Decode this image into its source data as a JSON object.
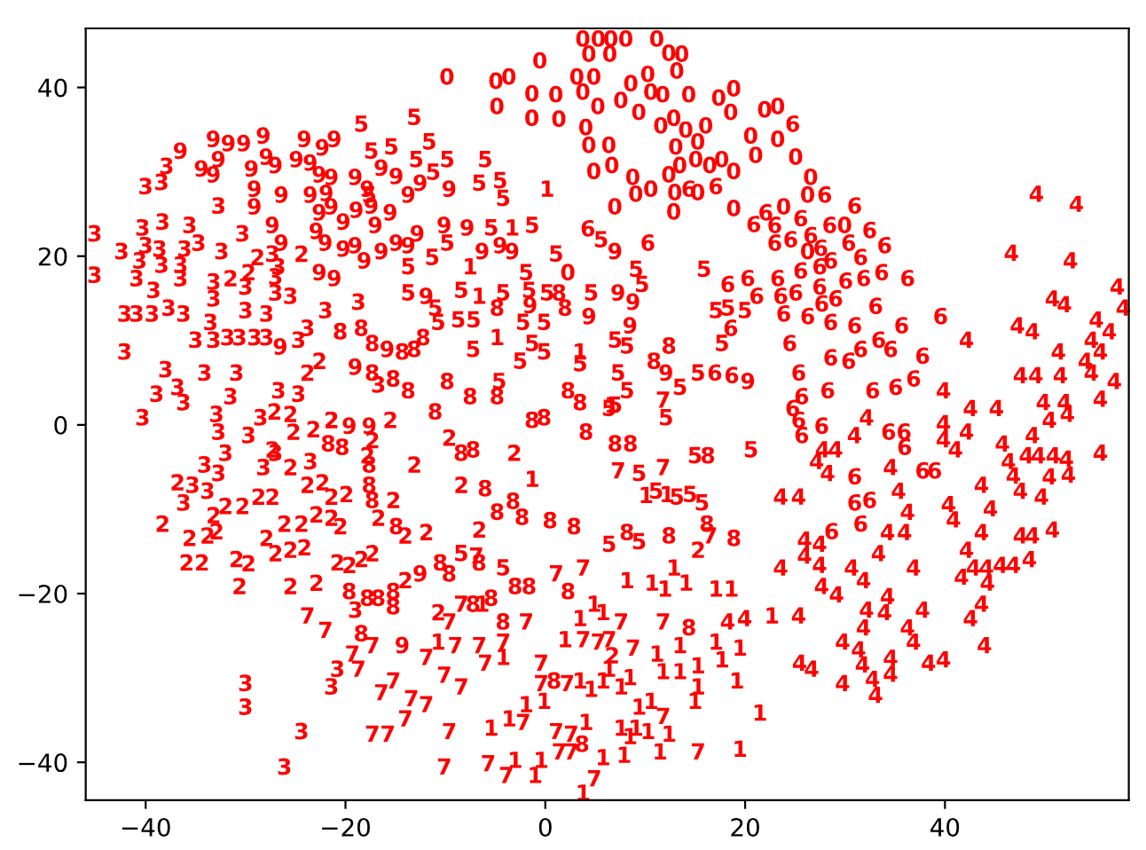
{
  "chart_data": {
    "type": "scatter",
    "xlim": [
      -46,
      58.4
    ],
    "ylim": [
      -44.5,
      47
    ],
    "xticks": [
      -40,
      -20,
      0,
      20,
      40
    ],
    "yticks": [
      -40,
      -20,
      0,
      20,
      40
    ],
    "series": [
      {
        "name": "0",
        "color": "#ff0000",
        "x": [
          -9.9,
          -5.0,
          -3.7,
          -4.9,
          -1.4,
          -1.4,
          1.0,
          1.3,
          -0.6,
          6.5,
          8.0,
          11.1,
          4.3,
          6.4,
          12.3,
          13.6,
          13.1,
          10.2,
          3.1,
          3.7,
          4.8,
          4.0,
          4.3,
          4.8,
          6.3,
          6.6,
          5.2,
          7.5,
          9.3,
          10.5,
          11.7,
          12.8,
          14.0,
          15.2,
          14.3,
          17.3,
          18.8,
          18.5,
          20.5,
          21.9,
          17.6,
          18.8,
          16.4,
          13.4,
          12.3,
          10.5,
          9.0,
          8.7,
          6.9,
          12.8,
          12.9,
          15.2,
          18.8,
          2.2,
          23.2,
          23.2,
          25.0,
          26.5,
          26.2,
          23.8,
          29.9,
          26.2,
          8.5,
          11.5,
          13.0,
          16.0,
          21.0,
          15.0,
          3.7
        ],
        "values": [
          41.3,
          40.8,
          41.3,
          37.8,
          39.3,
          36.4,
          39.2,
          36.3,
          43.2,
          45.8,
          45.8,
          45.8,
          44.0,
          44.0,
          44.1,
          44.0,
          42.0,
          41.6,
          41.3,
          39.5,
          41.3,
          35.3,
          33.2,
          30.1,
          33.2,
          30.8,
          37.8,
          38.5,
          37.1,
          39.5,
          39.2,
          36.4,
          35.0,
          33.6,
          39.2,
          38.8,
          39.9,
          37.1,
          34.3,
          37.4,
          31.5,
          30.1,
          30.8,
          30.8,
          29.7,
          28.0,
          27.4,
          29.4,
          25.9,
          25.3,
          27.6,
          27.6,
          25.7,
          18.1,
          37.8,
          33.9,
          31.8,
          29.4,
          27.3,
          25.9,
          23.7,
          20.6,
          40.5,
          35.5,
          33.0,
          35.5,
          32.0,
          31.5,
          45.8
        ]
      },
      {
        "name": "1",
        "color": "#ff0000",
        "x": [
          22.6,
          13.4,
          17.0,
          19.4,
          11.1,
          11.7,
          13.4,
          15.2,
          17.6,
          19.1,
          15.2,
          14.9,
          21.4,
          19.4,
          11.4,
          12.3,
          10.2,
          9.3,
          10.5,
          7.5,
          8.4,
          6.3,
          7.5,
          8.4,
          9.0,
          7.8,
          5.7,
          4.5,
          5.7,
          4.0,
          3.7,
          -0.5,
          -1.1,
          -2.0,
          -0.2,
          -3.7,
          -3.1,
          -5.5,
          3.4,
          4.8,
          1.9,
          3.4,
          10.0,
          12.1,
          10.6,
          11.9,
          12.8,
          14.0,
          8.1,
          5.7,
          -1.4,
          -6.4,
          -4.3,
          -10.8,
          0.1,
          -3.4,
          -7.6,
          -6.7,
          -4.9,
          3.4,
          6.6,
          17.0
        ],
        "values": [
          -22.6,
          -26.1,
          -25.7,
          -26.4,
          -27.1,
          -29.2,
          -29.2,
          -28.5,
          -27.8,
          -30.3,
          -31.0,
          -32.7,
          -34.1,
          -38.4,
          -38.7,
          -36.6,
          -36.3,
          -33.4,
          -32.7,
          -31.0,
          -29.9,
          -28.9,
          -35.9,
          -36.9,
          -35.9,
          -39.1,
          -39.4,
          -31.3,
          -30.3,
          -35.2,
          -43.6,
          -39.7,
          -41.5,
          -33.1,
          -32.7,
          -34.8,
          -39.7,
          -35.9,
          -22.9,
          -21.2,
          -25.4,
          -30.3,
          -8.3,
          -8.2,
          -18.7,
          -19.4,
          -16.9,
          -18.7,
          -18.4,
          -22.2,
          -6.4,
          -21.2,
          -27.5,
          -25.7,
          28.0,
          23.4,
          18.8,
          15.3,
          10.4,
          8.7,
          2.4,
          -19.4
        ]
      },
      {
        "name": "2",
        "color": "#ff0000",
        "x": [
          -38.4,
          -36.9,
          -35.7,
          -33.9,
          -30.7,
          -25.6,
          -23.0,
          -31.0,
          -29.8,
          -33.0,
          -33.3,
          -32.1,
          -30.4,
          -28.8,
          -27.4,
          -28.0,
          -27.1,
          -25.6,
          -24.2,
          -26.2,
          -24.5,
          -23.0,
          -21.5,
          -20.6,
          -21.5,
          -20.0,
          -23.9,
          -22.4,
          -27.4,
          -25.6,
          -25.3,
          -25.6,
          -23.3,
          -21.5,
          -17.9,
          -17.4,
          -15.6,
          -20.9,
          -19.7,
          -18.5,
          -17.4,
          -16.8,
          -15.3,
          -14.1,
          -14.1,
          -12.0,
          -13.2,
          -24.5,
          -31.6,
          -22.7,
          -23.9,
          -21.5,
          -27.2,
          -28.9,
          -29.8,
          -9.7,
          -8.5,
          -10.8,
          -6.7,
          -3.2,
          6.6,
          15.2,
          -36.0
        ],
        "values": [
          -11.7,
          -6.8,
          -13.4,
          -13.1,
          -19.1,
          -19.1,
          -18.7,
          -15.9,
          -16.4,
          -12.6,
          -10.7,
          -9.6,
          -9.6,
          -8.5,
          -8.5,
          -13.4,
          -15.2,
          -14.8,
          -14.5,
          -11.7,
          -11.7,
          -10.6,
          -11.0,
          -12.0,
          -8.5,
          -8.2,
          -7.1,
          -6.8,
          -2.9,
          -5.0,
          -0.8,
          1.3,
          -0.5,
          0.6,
          -3.6,
          -1.8,
          0.6,
          -16.3,
          -16.6,
          -15.9,
          -15.2,
          -11.0,
          -8.9,
          -18.4,
          -13.1,
          -12.7,
          -4.7,
          20.3,
          17.4,
          7.6,
          6.2,
          0.6,
          1.6,
          19.9,
          18.1,
          -1.5,
          -7.1,
          -22.2,
          -12.4,
          -3.3,
          -27.3,
          -14.8,
          -16.3
        ]
      },
      {
        "name": "3",
        "color": "#ff0000",
        "x": [
          -26.2,
          -38.0,
          -38.5,
          -40.1,
          -32.8,
          -38.4,
          -35.7,
          -40.4,
          -40.1,
          -45.2,
          -30.4,
          -45.2,
          -42.5,
          -40.7,
          -41.0,
          -38.7,
          -38.5,
          -36.2,
          -36.6,
          -34.8,
          -32.5,
          -36.6,
          -33.3,
          -33.3,
          -30.1,
          -27.1,
          -27.1,
          -25.6,
          -27.4,
          -26.8,
          -39.3,
          -42.2,
          -37.8,
          -36.3,
          -33.6,
          -30.1,
          -28.0,
          -35.1,
          -33.3,
          -31.9,
          -30.7,
          -29.2,
          -28.0,
          -23.9,
          -22.1,
          -18.8,
          -24.8,
          -42.2,
          -38.1,
          -39.0,
          -36.9,
          -36.3,
          -34.2,
          -31.6,
          -31.0,
          -26.8,
          -24.8,
          -40.4,
          -33.0,
          -16.8,
          -32.8,
          -32.1,
          -34.2,
          -32.8,
          -36.3,
          -35.4,
          -33.9,
          -28.6,
          -27.1,
          -29.8,
          -28.3,
          -23.6,
          -30.1,
          -30.1,
          -24.5,
          -20.9,
          -21.5,
          -19.1,
          -41.0
        ],
        "values": [
          -40.5,
          30.7,
          28.8,
          28.3,
          26.0,
          24.1,
          23.7,
          23.4,
          21.3,
          22.7,
          22.7,
          17.8,
          20.6,
          19.5,
          17.4,
          20.9,
          19.0,
          20.9,
          19.0,
          21.6,
          20.6,
          17.4,
          17.0,
          15.0,
          16.4,
          17.6,
          15.7,
          15.3,
          20.3,
          18.8,
          16.0,
          13.2,
          13.9,
          13.2,
          12.2,
          13.6,
          13.2,
          10.1,
          10.1,
          10.4,
          10.4,
          10.4,
          10.4,
          11.5,
          13.6,
          14.6,
          10.1,
          8.7,
          6.6,
          3.7,
          4.5,
          2.7,
          6.2,
          3.4,
          6.2,
          4.1,
          3.7,
          0.9,
          1.3,
          4.8,
          -0.8,
          -3.3,
          -4.7,
          -5.7,
          -9.2,
          -7.1,
          -7.8,
          0.9,
          -3.3,
          -1.2,
          -5.0,
          -4.3,
          -30.6,
          -33.4,
          -36.3,
          -28.9,
          -31.0,
          -21.9,
          13.2
        ]
      },
      {
        "name": "4",
        "color": "#ff0000",
        "x": [
          49.1,
          53.1,
          46.6,
          52.5,
          57.2,
          57.8,
          50.7,
          51.9,
          55.1,
          56.4,
          47.2,
          48.7,
          42.1,
          54.6,
          55.5,
          51.3,
          54.0,
          54.6,
          51.5,
          56.9,
          55.5,
          39.8,
          42.5,
          45.1,
          49.8,
          51.9,
          32.1,
          30.9,
          39.8,
          39.8,
          42.1,
          41.0,
          45.7,
          48.7,
          50.4,
          52.2,
          46.3,
          48.1,
          49.3,
          50.8,
          52.1,
          55.5,
          50.4,
          52.3,
          46.8,
          43.6,
          47.5,
          49.6,
          44.5,
          40.8,
          40.3,
          43.6,
          50.7,
          47.5,
          48.7,
          48.4,
          45.5,
          46.8,
          42.1,
          41.6,
          42.8,
          44.1,
          44.2,
          43.6,
          42.5,
          43.9,
          34.5,
          35.3,
          36.2,
          34.2,
          35.9,
          33.3,
          36.8,
          34.2,
          33.9,
          37.7,
          36.2,
          36.8,
          38.3,
          39.8,
          32.1,
          31.8,
          29.7,
          31.3,
          31.7,
          34.5,
          34.5,
          32.7,
          33.0,
          29.7,
          25.4,
          26.6,
          25.3,
          27.6,
          29.1,
          30.6,
          31.8,
          25.9,
          27.4,
          25.9,
          27.4,
          23.5,
          23.5,
          25.3,
          27.1,
          28.2,
          27.7,
          29.0,
          18.2,
          19.9,
          47.5
        ],
        "values": [
          27.4,
          26.2,
          20.4,
          19.5,
          16.4,
          13.9,
          15.0,
          14.3,
          12.5,
          11.1,
          11.8,
          11.1,
          10.1,
          10.1,
          8.7,
          8.7,
          7.6,
          6.2,
          5.9,
          5.2,
          3.1,
          4.1,
          2.0,
          2.0,
          2.7,
          2.7,
          0.9,
          -1.2,
          0.2,
          -1.7,
          -0.8,
          -2.9,
          -2.2,
          -1.2,
          0.6,
          1.3,
          -4.3,
          -3.6,
          -3.6,
          -3.6,
          -4.0,
          -3.3,
          -6.1,
          -5.9,
          -6.0,
          -7.1,
          -7.8,
          -8.5,
          -9.9,
          -11.2,
          -9.4,
          -12.7,
          -12.4,
          -13.1,
          -13.1,
          -15.9,
          -16.6,
          -16.6,
          -14.8,
          -18.0,
          -16.9,
          -16.9,
          -18.7,
          -21.2,
          -22.9,
          -26.1,
          -5.0,
          -7.8,
          -10.3,
          -12.7,
          -12.7,
          -15.2,
          -16.9,
          -20.3,
          -22.2,
          -21.9,
          -24.0,
          -25.7,
          -28.2,
          -27.8,
          -21.9,
          -24.0,
          -25.7,
          -26.6,
          -28.4,
          -27.6,
          -29.5,
          -30.1,
          -32.0,
          -30.6,
          -28.2,
          -28.9,
          -22.6,
          -19.1,
          -20.1,
          -16.9,
          -18.4,
          -13.6,
          -14.1,
          -15.5,
          -16.6,
          -16.9,
          -8.5,
          -8.5,
          -4.3,
          -5.7,
          -2.9,
          -2.9,
          -23.3,
          -22.9,
          5.9
        ]
      },
      {
        "name": "5",
        "color": "#ff0000",
        "x": [
          20.5,
          -11.7,
          -9.9,
          -6.1,
          -6.7,
          -4.6,
          -4.3,
          -1.4,
          -5.5,
          -9.9,
          -11.4,
          1.0,
          4.5,
          5.5,
          9.0,
          9.6,
          15.8,
          -8.5,
          -4.3,
          -2.0,
          -1.7,
          0.1,
          -11.1,
          -10.8,
          -2.3,
          -0.2,
          -1.4,
          -0.2,
          -2.6,
          6.9,
          8.1,
          7.2,
          8.1,
          6.9,
          3.4,
          17.0,
          18.2,
          19.9,
          17.6,
          15.2,
          13.4,
          -7.3,
          -4.7,
          6.3,
          -13.2,
          -18.5,
          -13.8,
          -13.8,
          -17.7,
          12.0,
          9.3,
          11.0,
          13.1,
          14.4,
          15.6,
          9.3,
          6.3,
          14.9,
          -8.5,
          -4.3,
          -15.5,
          -13.0,
          -11.3,
          -17.5,
          -8.8
        ],
        "values": [
          -2.9,
          33.6,
          31.5,
          31.5,
          28.7,
          29.0,
          26.9,
          23.7,
          23.4,
          21.6,
          19.9,
          20.3,
          15.7,
          22.0,
          18.5,
          16.7,
          18.5,
          16.0,
          15.7,
          18.1,
          16.0,
          15.7,
          13.9,
          12.2,
          12.2,
          12.2,
          9.7,
          8.7,
          7.6,
          10.1,
          9.4,
          6.2,
          4.1,
          2.4,
          7.3,
          13.6,
          13.9,
          13.6,
          9.7,
          6.2,
          4.5,
          9.0,
          5.2,
          2.0,
          36.5,
          35.7,
          18.8,
          15.7,
          27.3,
          0.9,
          -5.7,
          -7.8,
          -8.5,
          -8.2,
          -9.2,
          -13.8,
          -14.1,
          -3.6,
          -15.2,
          -16.9,
          33.0,
          31.5,
          30.0,
          32.5,
          12.5
        ]
      },
      {
        "name": "6",
        "color": "#ff0000",
        "x": [
          39.5,
          24.7,
          27.9,
          30.9,
          28.4,
          32.4,
          33.9,
          31.5,
          30.3,
          33.6,
          36.2,
          31.8,
          30.0,
          33.0,
          35.6,
          30.9,
          28.5,
          26.2,
          23.8,
          25.0,
          27.4,
          27.4,
          37.7,
          33.3,
          34.5,
          31.5,
          30.3,
          28.5,
          25.3,
          28.2,
          32.7,
          35.0,
          36.8,
          24.4,
          23.2,
          22.9,
          10.2,
          4.2,
          17.0,
          14.3,
          18.2,
          20.2,
          21.1,
          22.9,
          22.0,
          20.8,
          23.5,
          18.5,
          16.9,
          18.6,
          25.6,
          27.6,
          25.3,
          35.9,
          37.7,
          38.9,
          30.9,
          30.9,
          32.4,
          31.5,
          28.6,
          24.7,
          25.6,
          25.5,
          26.5,
          27.5,
          28.5,
          24.5,
          25.5,
          29.0,
          27.6,
          34.3
        ],
        "values": [
          12.9,
          35.7,
          27.3,
          26.0,
          23.7,
          23.1,
          21.3,
          19.9,
          21.6,
          18.1,
          17.4,
          17.4,
          17.1,
          14.1,
          11.8,
          11.8,
          12.2,
          12.9,
          13.2,
          15.7,
          18.8,
          16.4,
          8.2,
          10.1,
          9.0,
          9.0,
          7.6,
          8.0,
          6.2,
          4.1,
          4.1,
          4.5,
          5.5,
          9.7,
          17.4,
          21.6,
          21.6,
          23.3,
          28.3,
          28.0,
          16.7,
          17.4,
          15.3,
          23.7,
          25.2,
          23.8,
          15.3,
          11.5,
          6.2,
          5.9,
          -1.2,
          -0.1,
          0.6,
          -2.6,
          -5.4,
          -5.4,
          -6.1,
          -9.2,
          -8.9,
          -11.7,
          -12.6,
          2.0,
          3.4,
          24.5,
          22.5,
          21.0,
          19.5,
          22.0,
          18.3,
          15.0,
          14.4,
          -0.8
        ]
      },
      {
        "name": "7",
        "color": "#ff0000",
        "x": [
          15.2,
          -23.9,
          -22.1,
          -19.4,
          -18.8,
          -17.4,
          -16.5,
          -15.3,
          -14.1,
          -13.5,
          -12.0,
          -12.0,
          -9.7,
          -10.2,
          -5.8,
          -4.0,
          -2.3,
          1.3,
          2.5,
          4.8,
          1.0,
          2.5,
          11.7,
          3.7,
          5.2,
          6.3,
          7.2,
          11.7,
          16.4,
          11.7,
          8.7,
          7.5,
          -0.5,
          -0.5,
          2.1,
          -2.0,
          -4.3,
          -6.7,
          -6.1,
          -9.1,
          -10.2,
          -8.5,
          -8.5,
          -9.7,
          -7.0,
          1.0,
          3.7,
          11.7,
          -17.4
        ],
        "values": [
          -38.7,
          -22.6,
          -24.3,
          -27.1,
          -28.9,
          -26.1,
          -31.7,
          -30.3,
          -34.8,
          -32.4,
          -27.5,
          -33.1,
          -36.3,
          -40.5,
          -40.1,
          -41.5,
          -35.2,
          -38.7,
          -38.7,
          -41.9,
          -36.3,
          -36.6,
          -34.5,
          -25.4,
          -25.7,
          -25.4,
          -5.4,
          -5.0,
          -13.1,
          -23.3,
          -26.4,
          -23.3,
          -28.2,
          -30.6,
          -30.6,
          -23.3,
          -25.7,
          -26.1,
          -28.2,
          -26.1,
          -29.6,
          -31.0,
          -21.2,
          -23.3,
          -15.5,
          -17.6,
          -16.9,
          3.0,
          -36.6
        ]
      },
      {
        "name": "8",
        "color": "#ff0000",
        "x": [
          18.8,
          -20.6,
          -18.5,
          -17.4,
          -14.4,
          -13.2,
          -12.3,
          -15.3,
          -13.8,
          -17.4,
          -9.9,
          -7.6,
          -4.9,
          -1.4,
          2.2,
          3.4,
          12.3,
          10.8,
          1.9,
          1.3,
          -11.1,
          -4.9,
          -0.2,
          4.0,
          16.2,
          -7.3,
          -8.5,
          -6.1,
          -4.9,
          -3.3,
          -2.4,
          0.4,
          2.8,
          8.1,
          12.3,
          16.1,
          -6.7,
          -10.6,
          -9.7,
          -5.5,
          -3.1,
          -1.7,
          2.2,
          -7.3,
          -4.3,
          0.8,
          3.6,
          14.3,
          -21.8,
          -20.4,
          -17.7,
          -17.7,
          -17.4,
          -15.0,
          -19.7,
          -17.9,
          -16.8,
          -15.3,
          -18.5,
          -15.3,
          6.9
        ],
        "values": [
          -13.4,
          11.1,
          11.5,
          9.7,
          8.7,
          9.0,
          10.4,
          5.5,
          4.1,
          6.2,
          5.2,
          3.4,
          3.4,
          0.6,
          4.1,
          2.7,
          9.4,
          7.6,
          13.9,
          15.7,
          1.6,
          13.9,
          0.9,
          -0.8,
          -3.6,
          -2.9,
          -3.3,
          -7.5,
          -10.3,
          -9.0,
          -10.9,
          -11.3,
          -12.0,
          -12.7,
          -13.1,
          -11.7,
          -16.3,
          -16.3,
          -17.6,
          -20.5,
          -19.1,
          -19.1,
          -19.7,
          -21.2,
          -23.3,
          -30.3,
          -37.8,
          -24.0,
          -2.2,
          -2.6,
          -4.7,
          -7.1,
          -8.9,
          -12.0,
          -19.7,
          -20.5,
          -20.5,
          -21.5,
          -24.7,
          -19.7,
          -2.2
        ]
      },
      {
        "name": "9",
        "color": "#ff0000",
        "x": [
          -14.4,
          -33.3,
          -36.6,
          -28.3,
          -34.5,
          -33.3,
          -32.8,
          -29.5,
          -28.0,
          -27.1,
          -29.2,
          -29.2,
          -26.5,
          -24.2,
          -22.4,
          -21.2,
          -25.0,
          -23.6,
          -22.7,
          -21.5,
          -23.6,
          -22.7,
          -21.5,
          -20.3,
          -22.1,
          -20.3,
          -19.1,
          -22.7,
          -21.2,
          -18.2,
          -16.5,
          -15.0,
          -17.1,
          -15.6,
          -13.8,
          -12.6,
          -19.1,
          -17.9,
          -13.8,
          -12.9,
          -12.0,
          -27.4,
          -26.5,
          -15.9,
          -19.1,
          -26.6,
          -9.7,
          -10.2,
          -7.9,
          -6.4,
          -4.6,
          -3.4,
          6.9,
          7.2,
          8.7,
          4.3,
          -1.6,
          20.2,
          12.0,
          8.4,
          -19.7,
          -17.7,
          -12.6,
          -22.0,
          -19.0,
          -23.0,
          -17.5,
          -15.0,
          -16.5,
          -31.8
        ],
        "values": [
          -26.1,
          33.9,
          32.5,
          34.3,
          30.4,
          29.7,
          31.5,
          30.4,
          31.8,
          30.8,
          28.0,
          25.9,
          27.3,
          33.9,
          32.9,
          33.9,
          31.5,
          31.1,
          29.7,
          29.4,
          27.3,
          25.2,
          25.9,
          24.1,
          21.6,
          20.9,
          21.3,
          18.1,
          17.4,
          19.5,
          20.6,
          21.6,
          23.7,
          25.2,
          27.3,
          28.7,
          29.4,
          28.0,
          21.3,
          22.7,
          15.3,
          23.7,
          21.6,
          9.0,
          6.9,
          9.3,
          28.0,
          23.7,
          23.4,
          20.6,
          21.3,
          20.6,
          20.6,
          15.7,
          14.6,
          12.9,
          14.2,
          5.2,
          6.2,
          11.8,
          -0.1,
          -0.1,
          -17.6,
          27.5,
          25.5,
          23.0,
          26.0,
          29.5,
          30.5,
          33.4
        ]
      }
    ]
  }
}
